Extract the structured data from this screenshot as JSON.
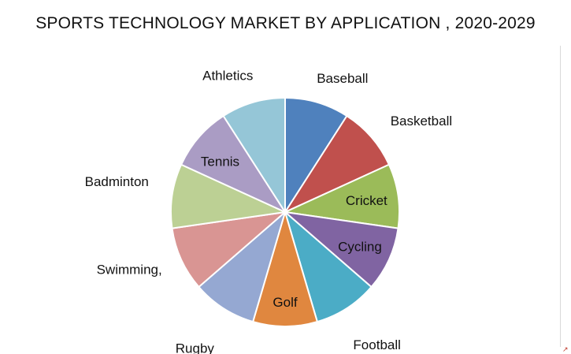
{
  "chart_data": {
    "type": "pie",
    "title": "SPORTS TECHNOLOGY MARKET BY APPLICATION , 2020-2029",
    "categories": [
      "Baseball",
      "Basketball",
      "Cricket",
      "Cycling",
      "Football",
      "Golf",
      "Rugby",
      "Swimming,",
      "Badminton",
      "Tennis",
      "Athletics"
    ],
    "values": [
      9.09,
      9.09,
      9.09,
      9.09,
      9.09,
      9.09,
      9.09,
      9.09,
      9.09,
      9.09,
      9.09
    ],
    "colors": [
      "#4f81bd",
      "#c0504d",
      "#9bbb59",
      "#8064a2",
      "#4bacc6",
      "#e0873f",
      "#95a8d2",
      "#d99593",
      "#bcd094",
      "#aa9cc4",
      "#95c6d7"
    ],
    "legend": "none"
  }
}
